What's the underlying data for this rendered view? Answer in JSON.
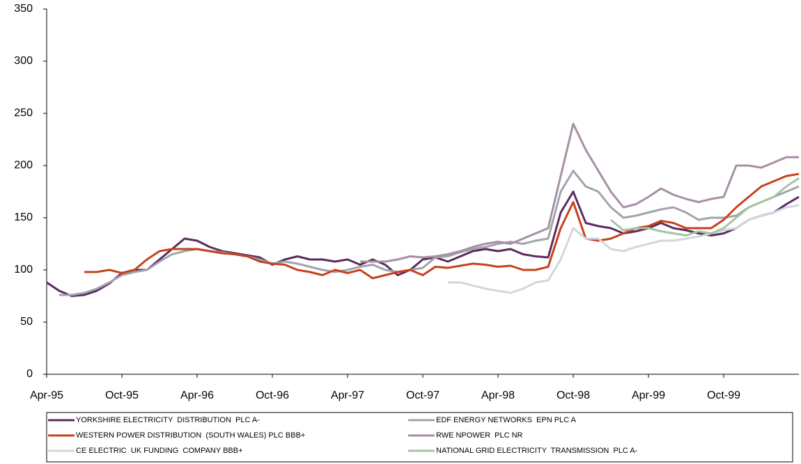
{
  "chart_data": {
    "type": "line",
    "categories": [
      "Apr-95",
      null,
      null,
      null,
      null,
      null,
      "Oct-95",
      null,
      null,
      null,
      null,
      null,
      "Apr-96",
      null,
      null,
      null,
      null,
      null,
      "Oct-96",
      null,
      null,
      null,
      null,
      null,
      "Apr-97",
      null,
      null,
      null,
      null,
      null,
      "Oct-97",
      null,
      null,
      null,
      null,
      null,
      "Apr-98",
      null,
      null,
      null,
      null,
      null,
      "Oct-98",
      null,
      null,
      null,
      null,
      null,
      "Apr-99",
      null,
      null,
      null,
      null,
      null,
      "Oct-99",
      null,
      null,
      null,
      null,
      null,
      null
    ],
    "ylim": [
      0,
      350
    ],
    "yticks": [
      0,
      50,
      100,
      150,
      200,
      250,
      300,
      350
    ],
    "series": [
      {
        "name": "YORKSHIRE ELECTRICITY  DISTRIBUTION  PLC A-",
        "color": "#5a2a5e",
        "values": [
          88,
          80,
          75,
          76,
          80,
          87,
          97,
          100,
          100,
          110,
          120,
          130,
          128,
          122,
          118,
          116,
          114,
          112,
          105,
          110,
          113,
          110,
          110,
          108,
          110,
          105,
          110,
          105,
          95,
          100,
          110,
          112,
          108,
          113,
          118,
          120,
          118,
          120,
          115,
          113,
          112,
          155,
          175,
          145,
          142,
          140,
          135,
          137,
          140,
          145,
          140,
          138,
          135,
          133,
          135,
          140,
          148,
          152,
          155,
          163,
          170
        ]
      },
      {
        "name": "EDF ENERGY NETWORKS  EPN PLC A",
        "color": "#a0a4ab",
        "values": [
          null,
          76,
          76,
          78,
          82,
          88,
          95,
          98,
          100,
          108,
          115,
          118,
          120,
          118,
          117,
          115,
          113,
          110,
          106,
          108,
          106,
          103,
          100,
          98,
          100,
          103,
          105,
          100,
          98,
          100,
          102,
          112,
          113,
          117,
          120,
          122,
          125,
          127,
          125,
          128,
          130,
          175,
          195,
          180,
          175,
          160,
          150,
          152,
          155,
          158,
          160,
          155,
          148,
          150,
          150,
          152,
          160,
          165,
          170,
          175,
          180
        ]
      },
      {
        "name": "WESTERN POWER DISTRIBUTION  (SOUTH WALES) PLC BBB+",
        "color": "#c8401c",
        "values": [
          null,
          null,
          null,
          98,
          98,
          100,
          97,
          100,
          110,
          118,
          120,
          120,
          120,
          118,
          116,
          115,
          113,
          108,
          106,
          105,
          100,
          98,
          95,
          100,
          97,
          100,
          92,
          95,
          98,
          100,
          95,
          103,
          102,
          104,
          106,
          105,
          103,
          104,
          100,
          100,
          103,
          140,
          165,
          130,
          128,
          130,
          135,
          140,
          142,
          147,
          145,
          140,
          140,
          140,
          148,
          160,
          170,
          180,
          185,
          190,
          192
        ]
      },
      {
        "name": "RWE NPOWER  PLC NR",
        "color": "#a58fa5",
        "values": [
          null,
          null,
          null,
          null,
          null,
          null,
          null,
          null,
          null,
          null,
          null,
          null,
          null,
          null,
          null,
          null,
          null,
          null,
          null,
          null,
          null,
          null,
          null,
          null,
          null,
          108,
          108,
          108,
          110,
          113,
          112,
          113,
          115,
          118,
          122,
          125,
          127,
          125,
          130,
          135,
          140,
          190,
          240,
          215,
          195,
          175,
          160,
          163,
          170,
          178,
          172,
          168,
          165,
          168,
          170,
          200,
          200,
          198,
          203,
          208,
          208
        ]
      },
      {
        "name": "CE ELECTRIC  UK FUNDING  COMPANY BBB+",
        "color": "#d4d6dc",
        "values": [
          null,
          null,
          null,
          null,
          null,
          null,
          null,
          null,
          null,
          null,
          null,
          null,
          null,
          null,
          null,
          null,
          null,
          null,
          null,
          null,
          null,
          null,
          null,
          null,
          null,
          null,
          null,
          null,
          null,
          null,
          null,
          null,
          88,
          88,
          85,
          82,
          80,
          78,
          82,
          88,
          90,
          110,
          140,
          130,
          130,
          120,
          118,
          122,
          125,
          128,
          128,
          130,
          132,
          135,
          138,
          140,
          148,
          152,
          155,
          160,
          162
        ]
      },
      {
        "name": "NATIONAL GRID ELECTRICITY  TRANSMISSION  PLC A-",
        "color": "#a3c4a3",
        "values": [
          null,
          null,
          null,
          null,
          null,
          null,
          null,
          null,
          null,
          null,
          null,
          null,
          null,
          null,
          null,
          null,
          null,
          null,
          null,
          null,
          null,
          null,
          null,
          null,
          null,
          null,
          null,
          null,
          null,
          null,
          null,
          null,
          null,
          null,
          null,
          null,
          null,
          null,
          null,
          null,
          null,
          null,
          null,
          null,
          null,
          148,
          138,
          140,
          140,
          137,
          135,
          133,
          137,
          135,
          140,
          150,
          160,
          165,
          170,
          180,
          188
        ]
      }
    ]
  }
}
